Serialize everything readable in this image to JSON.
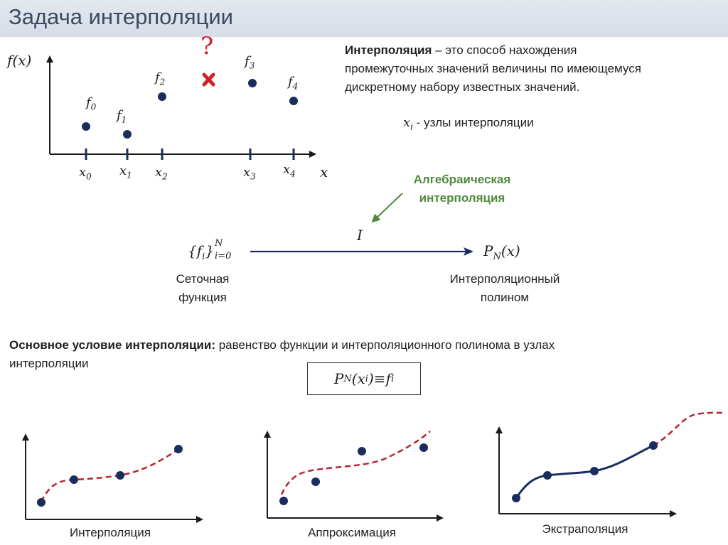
{
  "slide": {
    "title": "Задача интерполяции"
  },
  "top_chart": {
    "y_axis_label": "f(x)",
    "x_axis_label": "x",
    "points": [
      {
        "label": "f",
        "sub": "0",
        "x_label": "x",
        "x_sub": "0"
      },
      {
        "label": "f",
        "sub": "1",
        "x_label": "x",
        "x_sub": "1"
      },
      {
        "label": "f",
        "sub": "2",
        "x_label": "x",
        "x_sub": "2"
      },
      {
        "label": "f",
        "sub": "3",
        "x_label": "x",
        "x_sub": "3"
      },
      {
        "label": "f",
        "sub": "4",
        "x_label": "x",
        "x_sub": "4"
      }
    ],
    "unknown_mark": "?",
    "unknown_color": "#d0202a",
    "point_color": "#1a2d5c"
  },
  "definition": {
    "term": "Интерполяция",
    "rest_line1": " – это способ нахождения",
    "line2": "промежуточных значений величины по имеющемуся",
    "line3": "дискретному набору известных значений.",
    "nodes_symbol": "x",
    "nodes_sub": "i",
    "nodes_text": " - узлы интерполяции"
  },
  "mapping": {
    "algebraic_line1": "Алгебраическая",
    "algebraic_line2": "интерполяция",
    "operator": "I",
    "source_expr": "{f",
    "source_sub": "i",
    "source_close": "}",
    "source_sup": "N",
    "source_range": "i=0",
    "target_expr": "P",
    "target_sub": "N",
    "target_arg": "(x)",
    "source_caption_1": "Сеточная",
    "source_caption_2": "функция",
    "target_caption_1": "Интерполяционный",
    "target_caption_2": "полином",
    "accent_color": "#4e8a3a"
  },
  "condition": {
    "bold_part": "Основное условие интерполяции:",
    "rest_line1": " равенство функции и интерполяционного полинома в узлах",
    "line2": "интерполяции",
    "formula_p": "P",
    "formula_p_sub": "N",
    "formula_arg_open": "(x",
    "formula_arg_sub": "i",
    "formula_arg_close": ")",
    "formula_equiv": " ≡ ",
    "formula_f": "f",
    "formula_f_sub": "i"
  },
  "bottom_charts": [
    {
      "caption": "Интерполяция",
      "curve_style": "dashed",
      "curve_color": "#b8232c"
    },
    {
      "caption": "Аппроксимация",
      "curve_style": "dashed",
      "curve_color": "#b8232c"
    },
    {
      "caption": "Экстраполяция",
      "curve_style": "solid+dashed",
      "curve_color": "#1a2d5c"
    }
  ]
}
